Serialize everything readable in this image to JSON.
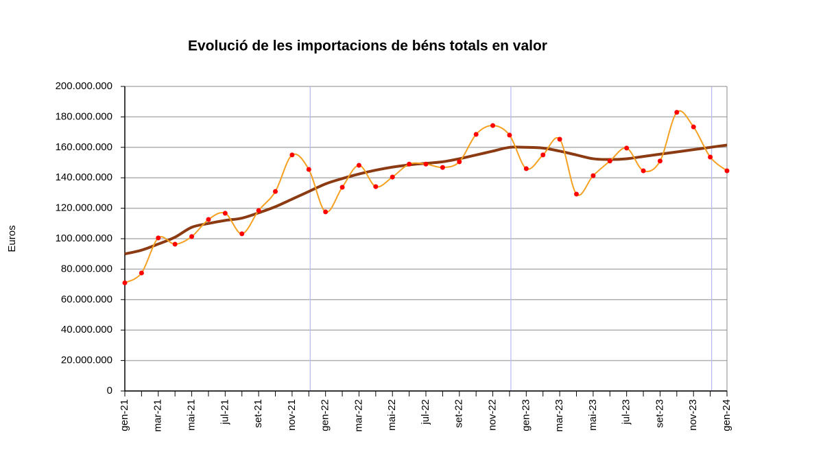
{
  "chart_data": {
    "type": "line",
    "title": "Evolució de les importacions de béns totals en valor",
    "y_label": "Euros",
    "categories": [
      "gen-21",
      null,
      "mar-21",
      null,
      "mai-21",
      null,
      "jul-21",
      null,
      "set-21",
      null,
      "nov-21",
      null,
      "gen-22",
      null,
      "mar-22",
      null,
      "mai-22",
      null,
      "jul-22",
      null,
      "set-22",
      null,
      "nov-22",
      null,
      "gen-23",
      null,
      "mar-23",
      null,
      "mai-23",
      null,
      "jul-23",
      null,
      "set-23",
      null,
      "nov-23",
      null,
      "gen-24"
    ],
    "series": [
      {
        "color": "#f5a020",
        "marker_color": "#ff0000",
        "smooth": true,
        "values": [
          71000000,
          77500000,
          100500000,
          96400000,
          101400000,
          112600000,
          116700000,
          103200000,
          118500000,
          131000000,
          155000000,
          145500000,
          117600000,
          133800000,
          148200000,
          134200000,
          140500000,
          149000000,
          149000000,
          146800000,
          150500000,
          168500000,
          174300000,
          168000000,
          146000000,
          155000000,
          165300000,
          129300000,
          141400000,
          151000000,
          159500000,
          144600000,
          151000000,
          183000000,
          173400000,
          153600000,
          144600000
        ]
      },
      {
        "color": "#8b3a12",
        "smooth": true,
        "values": [
          90000000,
          92500000,
          96500000,
          101000000,
          107500000,
          110000000,
          112000000,
          113500000,
          117000000,
          121000000,
          126000000,
          131000000,
          136000000,
          139500000,
          142500000,
          145000000,
          147000000,
          148500000,
          149500000,
          150500000,
          152500000,
          155000000,
          157500000,
          160000000,
          160000000,
          159500000,
          157500000,
          155000000,
          152500000,
          152000000,
          152500000,
          154000000,
          155500000,
          157000000,
          158500000,
          160000000,
          161500000
        ]
      }
    ],
    "ylim": [
      0,
      200000000
    ],
    "yticks": [
      0,
      {
        "value": 20000000,
        "label": "20.000.000"
      },
      {
        "value": 40000000,
        "label": "40.000.000"
      },
      {
        "value": 60000000,
        "label": "60.000.000"
      },
      {
        "value": 80000000,
        "label": "80.000.000"
      },
      {
        "value": 100000000,
        "label": "100.000.000"
      },
      {
        "value": 120000000,
        "label": "120.000.000"
      },
      {
        "value": 140000000,
        "label": "140.000.000"
      },
      {
        "value": 160000000,
        "label": "160.000.000"
      },
      {
        "value": 180000000,
        "label": "180.000.000"
      },
      {
        "value": 200000000,
        "label": "200.000.000"
      }
    ],
    "grid": true
  }
}
